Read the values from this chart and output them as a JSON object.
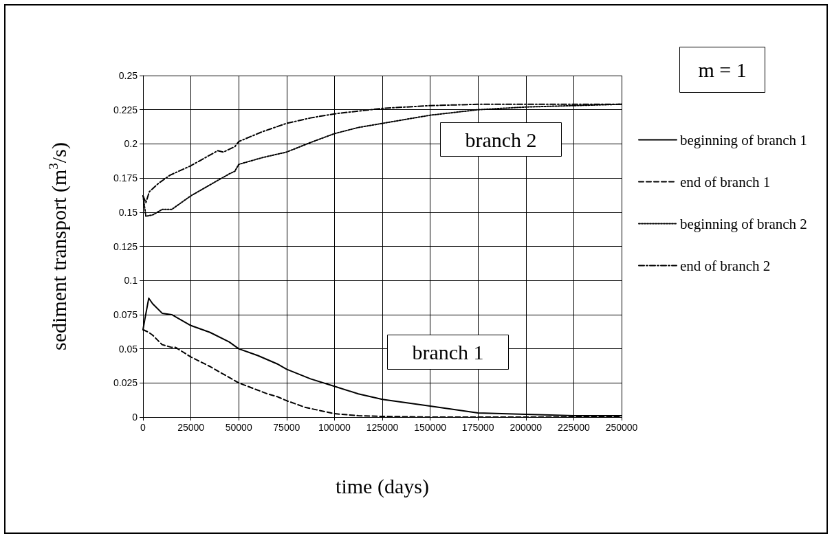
{
  "chart_data": {
    "type": "line",
    "xlabel": "time (days)",
    "ylabel": "sediment transport (m$^{3}$/s)",
    "annotations": [
      "m = 1",
      "branch 2",
      "branch 1"
    ],
    "xlim": [
      0,
      250000
    ],
    "xticks": [
      0,
      25000,
      50000,
      75000,
      100000,
      125000,
      150000,
      175000,
      200000,
      225000,
      250000
    ],
    "ylim": [
      0,
      0.25
    ],
    "yticks": [
      0,
      0.025,
      0.05,
      0.075,
      0.1,
      0.125,
      0.15,
      0.175,
      0.2,
      0.225,
      0.25
    ],
    "grid": true,
    "legend": "right",
    "marker": "none",
    "series": [
      {
        "name": "beginning of branch 1",
        "color": "#000000",
        "line_style": "solid",
        "x": [
          0,
          1000,
          3000,
          5000,
          10000,
          15000,
          20000,
          25000,
          35000,
          45000,
          50000,
          60000,
          70000,
          75000,
          87500,
          100000,
          112500,
          125000,
          150000,
          175000,
          200000,
          225000,
          250000
        ],
        "values": [
          0.064,
          0.072,
          0.087,
          0.083,
          0.076,
          0.075,
          0.071,
          0.067,
          0.062,
          0.055,
          0.05,
          0.045,
          0.039,
          0.035,
          0.028,
          0.0225,
          0.017,
          0.013,
          0.008,
          0.003,
          0.002,
          0.001,
          0.001
        ]
      },
      {
        "name": "end of branch 1",
        "color": "#000000",
        "line_style": "dashed",
        "x": [
          0,
          3000,
          5000,
          10000,
          15000,
          17000,
          25000,
          35000,
          50000,
          65000,
          70000,
          75000,
          85000,
          100000,
          112500,
          125000,
          150000,
          175000,
          200000,
          250000
        ],
        "values": [
          0.064,
          0.062,
          0.06,
          0.053,
          0.051,
          0.051,
          0.044,
          0.037,
          0.025,
          0.017,
          0.015,
          0.012,
          0.007,
          0.0025,
          0.001,
          0.0005,
          0,
          0,
          0,
          0
        ]
      },
      {
        "name": "beginning of branch 2",
        "color": "#000000",
        "line_style": "dotted",
        "x": [
          0,
          1500,
          5000,
          10000,
          15000,
          25000,
          35000,
          45000,
          48000,
          50000,
          62500,
          75000,
          87500,
          100000,
          112500,
          125000,
          150000,
          175000,
          200000,
          225000,
          250000
        ],
        "values": [
          0.162,
          0.147,
          0.148,
          0.152,
          0.152,
          0.162,
          0.17,
          0.178,
          0.18,
          0.185,
          0.19,
          0.194,
          0.201,
          0.2075,
          0.212,
          0.215,
          0.221,
          0.225,
          0.227,
          0.228,
          0.229
        ]
      },
      {
        "name": "end of branch 2",
        "color": "#000000",
        "line_style": "dashdot",
        "x": [
          0,
          1500,
          3300,
          8000,
          14000,
          25000,
          39000,
          42000,
          48000,
          50000,
          62500,
          75000,
          87500,
          100000,
          125000,
          150000,
          175000,
          200000,
          250000
        ],
        "values": [
          0.162,
          0.157,
          0.165,
          0.171,
          0.177,
          0.184,
          0.195,
          0.194,
          0.198,
          0.2017,
          0.209,
          0.215,
          0.219,
          0.222,
          0.226,
          0.228,
          0.229,
          0.229,
          0.229
        ]
      }
    ]
  }
}
